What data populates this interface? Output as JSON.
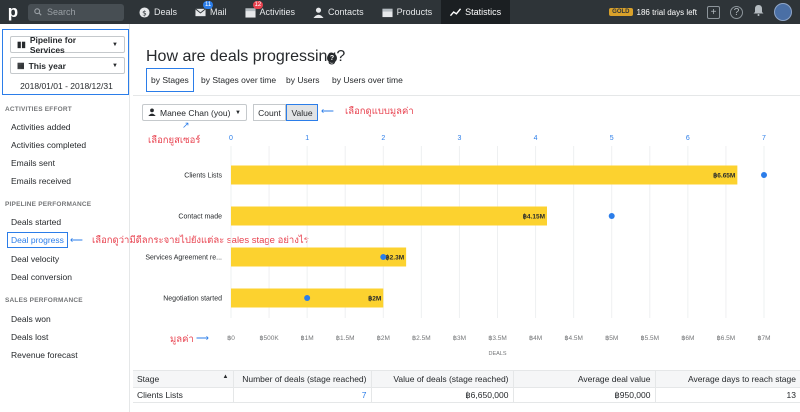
{
  "topbar": {
    "logo": "p",
    "search_placeholder": "Search",
    "nav": [
      {
        "label": "Deals",
        "icon": "dollar-icon",
        "badge": ""
      },
      {
        "label": "Mail",
        "icon": "mail-icon",
        "badge": "11"
      },
      {
        "label": "Activities",
        "icon": "calendar-icon",
        "badge": "12"
      },
      {
        "label": "Contacts",
        "icon": "person-icon",
        "badge": ""
      },
      {
        "label": "Products",
        "icon": "box-icon",
        "badge": ""
      },
      {
        "label": "Statistics",
        "icon": "chart-line-icon",
        "badge": ""
      }
    ],
    "gold_label": "GOLD",
    "trial_text": "186 trial days left",
    "accent": "#2b7de9"
  },
  "sidebar": {
    "pipeline": "Pipeline for Services",
    "period": "This year",
    "date_range": "2018/01/01 - 2018/12/31",
    "sections": [
      {
        "title": "ACTIVITIES EFFORT",
        "items": [
          "Activities added",
          "Activities completed",
          "Emails sent",
          "Emails received"
        ]
      },
      {
        "title": "PIPELINE PERFORMANCE",
        "items": [
          "Deals started",
          "Deal progress",
          "Deal velocity",
          "Deal conversion"
        ]
      },
      {
        "title": "SALES PERFORMANCE",
        "items": [
          "Deals won",
          "Deals lost",
          "Revenue forecast"
        ]
      }
    ]
  },
  "main": {
    "title": "How are deals progressing?",
    "tabs": [
      "by Stages",
      "by Stages over time",
      "by Users",
      "by Users over time"
    ],
    "user": "Manee Chan (you)",
    "count_label": "Count",
    "value_label": "Value"
  },
  "annotations": {
    "value_view": "เลือกดูแบบมูลค่า",
    "select_user": "เลือกยูสเซอร์",
    "deal_progress": "เลือกดูว่ามีดีลกระจายไปยังแต่ละ sales stage อย่างไร",
    "value_axis": "มูลค่า"
  },
  "chart_data": {
    "type": "bar",
    "orientation": "horizontal",
    "categories": [
      "Clients Lists",
      "Contact made",
      "Services Agreement re...",
      "Negotiation started"
    ],
    "series": [
      {
        "values": [
          6650000,
          4150000,
          2300000,
          2000000
        ],
        "labels": [
          "฿6.65M",
          "฿4.15M",
          "฿2.3M",
          "฿2M"
        ],
        "color": "#fcd22f"
      },
      {
        "values": [
          7,
          5,
          2,
          1
        ],
        "color": "#2b7de9",
        "marker": "dot"
      }
    ],
    "top_axis": {
      "ticks": [
        "0",
        "1",
        "2",
        "3",
        "4",
        "5",
        "6",
        "7"
      ],
      "range": [
        0,
        7
      ]
    },
    "bottom_axis": {
      "ticks": [
        "฿0",
        "฿500K",
        "฿1M",
        "฿1.5M",
        "฿2M",
        "฿2.5M",
        "฿3M",
        "฿3.5M",
        "฿4M",
        "฿4.5M",
        "฿5M",
        "฿5.5M",
        "฿6M",
        "฿6.5M",
        "฿7M"
      ],
      "range": [
        0,
        7000000
      ]
    },
    "xlabel": "DEALS",
    "grid": true
  },
  "table": {
    "headers": [
      "Stage",
      "Number of deals (stage reached)",
      "Value of deals (stage reached)",
      "Average deal value",
      "Average days to reach stage"
    ],
    "rows": [
      [
        "Clients Lists",
        "7",
        "฿6,650,000",
        "฿950,000",
        "13"
      ]
    ]
  }
}
